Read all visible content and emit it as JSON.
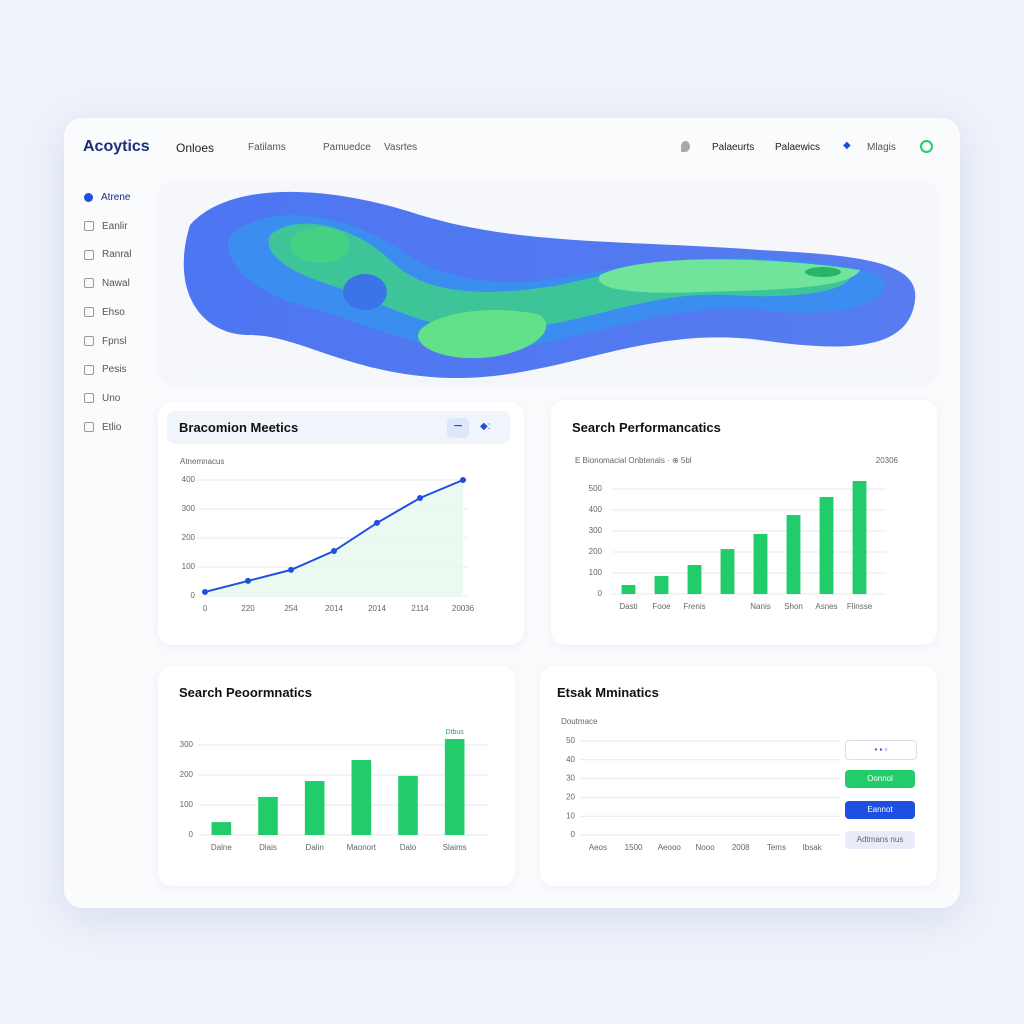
{
  "header": {
    "logo": "Acoytics",
    "nav": [
      "Onloes",
      "Fatilams",
      "Pamuedce",
      "Vasrtes"
    ],
    "right": [
      "Palaeurts",
      "Palaewics",
      "Mlagis"
    ]
  },
  "sidebar": [
    "Atrene",
    "Eanlir",
    "Ranral",
    "Nawal",
    "Ehso",
    "Fpnsl",
    "Pesis",
    "Uno",
    "Etlio"
  ],
  "controls": [
    "Oonnol",
    "Eannot",
    "Adtmans nus"
  ],
  "chart_data": [
    {
      "type": "line",
      "title": "Bracomion Meetics",
      "subtitle": "Atnemnacus",
      "categories": [
        "0",
        "220",
        "254",
        "2014",
        "2014",
        "2114",
        "20036"
      ],
      "values": [
        14,
        52,
        90,
        155,
        252,
        338,
        400
      ],
      "color": "#1f4fe0",
      "ylim": [
        0,
        400
      ],
      "yticks": [
        0,
        100,
        200,
        300,
        400
      ],
      "grid": true
    },
    {
      "type": "bar",
      "title": "Search Performancatics",
      "subtitle": "E Bionomacial Onbtenals · ⊕ 5bl",
      "note": "20306",
      "categories": [
        "Dasti",
        "Fooe",
        "Frenis",
        null,
        "Nanis",
        "Shon",
        "Asnes",
        "Flinsse"
      ],
      "values": [
        43,
        86,
        138,
        214,
        286,
        376,
        462,
        538
      ],
      "color": "#22cc6a",
      "ylim": [
        0,
        550
      ],
      "yticks": [
        0,
        100,
        200,
        300,
        400,
        500
      ],
      "grid": true
    },
    {
      "type": "bar",
      "title": "Search Peoormnatics",
      "annotation": "Dtbus",
      "categories": [
        "Dalne",
        "Dlais",
        "Dalin",
        "Maonort",
        "Dalo",
        "Slaims"
      ],
      "values": [
        43,
        127,
        180,
        250,
        197,
        320
      ],
      "color": "#22cc6a",
      "ylim": [
        0,
        330
      ],
      "yticks": [
        0,
        100,
        200,
        300
      ],
      "grid": true
    },
    {
      "type": "grid",
      "title": "Etsak Mminatics",
      "subtitle": "Doutmace",
      "categories": [
        "Aeos",
        "1500",
        "Aeooo",
        "Nooo",
        "2008",
        "Tems",
        "Ibsak"
      ],
      "ylim": [
        0,
        50
      ],
      "yticks": [
        0,
        10,
        20,
        30,
        40,
        50
      ],
      "grid": true
    }
  ]
}
